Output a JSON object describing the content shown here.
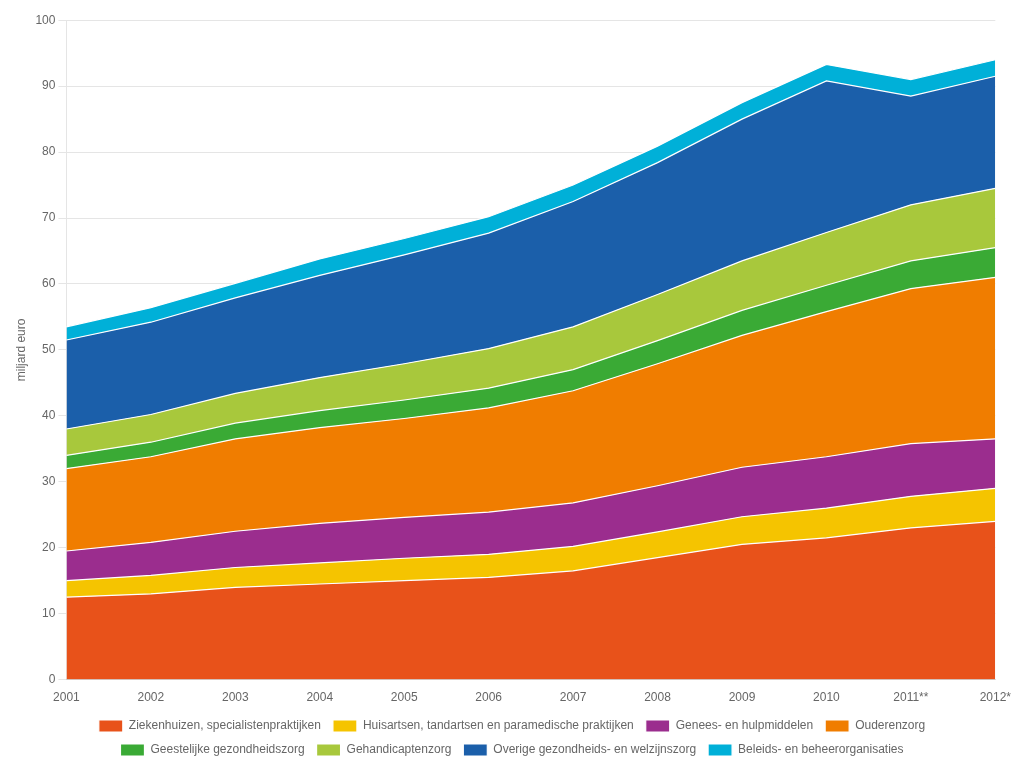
{
  "chart_data": {
    "type": "area",
    "stacked": true,
    "categories": [
      "2001",
      "2002",
      "2003",
      "2004",
      "2005",
      "2006",
      "2007",
      "2008",
      "2009",
      "2010",
      "2011**",
      "2012*"
    ],
    "series": [
      {
        "name": "Ziekenhuizen, specialistenpraktijken",
        "color": "#E8521A",
        "values": [
          12.5,
          13.0,
          14.0,
          14.5,
          15.0,
          15.5,
          16.5,
          18.5,
          20.5,
          21.5,
          23.0,
          24.0
        ]
      },
      {
        "name": "Huisartsen, tandartsen en paramedische praktijken",
        "color": "#F5C400",
        "values": [
          2.5,
          2.8,
          3.0,
          3.2,
          3.4,
          3.5,
          3.7,
          3.9,
          4.2,
          4.5,
          4.8,
          5.0
        ]
      },
      {
        "name": "Genees- en hulpmiddelen",
        "color": "#9B2D8E",
        "values": [
          4.5,
          5.0,
          5.5,
          6.0,
          6.2,
          6.4,
          6.6,
          7.0,
          7.5,
          7.8,
          8.0,
          7.5
        ]
      },
      {
        "name": "Ouderenzorg",
        "color": "#F07D00",
        "values": [
          12.5,
          13.0,
          14.0,
          14.5,
          15.0,
          15.8,
          17.0,
          18.5,
          20.0,
          22.0,
          23.5,
          24.5
        ]
      },
      {
        "name": "Geestelijke gezondheidszorg",
        "color": "#3AAA35",
        "values": [
          2.0,
          2.2,
          2.4,
          2.6,
          2.8,
          3.0,
          3.2,
          3.5,
          3.8,
          4.0,
          4.2,
          4.5
        ]
      },
      {
        "name": "Gehandicaptenzorg",
        "color": "#A8C83C",
        "values": [
          4.0,
          4.2,
          4.5,
          5.0,
          5.5,
          6.0,
          6.5,
          7.0,
          7.5,
          8.0,
          8.5,
          9.0
        ]
      },
      {
        "name": "Overige gezondheids- en welzijnszorg",
        "color": "#1B5FAA",
        "values": [
          13.5,
          14.0,
          14.5,
          15.5,
          16.5,
          17.5,
          19.0,
          20.0,
          21.5,
          23.0,
          16.5,
          17.0
        ]
      },
      {
        "name": "Beleids- en beheerorganisaties",
        "color": "#00B0D8",
        "values": [
          2.0,
          2.2,
          2.2,
          2.5,
          2.5,
          2.5,
          2.5,
          2.5,
          2.5,
          2.5,
          2.5,
          2.5
        ]
      }
    ],
    "ylabel": "miljard euro",
    "ylim": [
      0,
      100
    ],
    "yticks": [
      0,
      10,
      20,
      30,
      40,
      50,
      60,
      70,
      80,
      90,
      100
    ],
    "grid": true,
    "legend": "bottom"
  }
}
